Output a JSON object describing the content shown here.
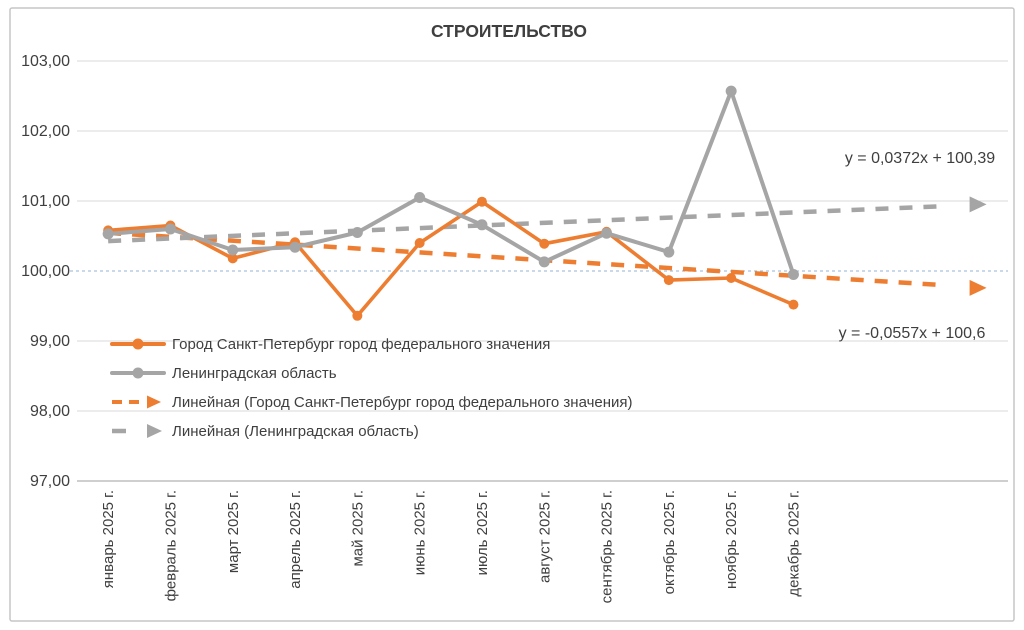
{
  "title": "СТРОИТЕЛЬСТВО",
  "chart_data": {
    "type": "line",
    "title": "СТРОИТЕЛЬСТВО",
    "categories": [
      "январь 2025 г.",
      "февраль 2025 г.",
      "март 2025 г.",
      "апрель 2025 г.",
      "май 2025 г.",
      "июнь 2025 г.",
      "июль 2025 г.",
      "август 2025 г.",
      "сентябрь 2025 г.",
      "октябрь 2025 г.",
      "ноябрь 2025 г.",
      "декабрь 2025 г."
    ],
    "series": [
      {
        "name": "Город Санкт-Петербург город федерального значения",
        "color": "#ED7D31",
        "marker": "circle",
        "values": [
          100.58,
          100.65,
          100.18,
          100.41,
          99.36,
          100.4,
          100.99,
          100.39,
          100.56,
          99.87,
          99.9,
          99.52
        ]
      },
      {
        "name": "Ленинградская область",
        "color": "#A5A5A5",
        "marker": "circle",
        "values": [
          100.53,
          100.6,
          100.3,
          100.34,
          100.55,
          101.05,
          100.66,
          100.13,
          100.54,
          100.27,
          102.57,
          99.95
        ]
      }
    ],
    "trendlines": [
      {
        "name": "Линейная (Город Санкт-Петербург город федерального значения)",
        "color": "#ED7D31",
        "slope": -0.0557,
        "intercept": 100.6,
        "equation_label": "y = -0,0557x + 100,6"
      },
      {
        "name": "Линейная (Ленинградская область)",
        "color": "#A5A5A5",
        "slope": 0.0372,
        "intercept": 100.39,
        "equation_label": "y = 0,0372x + 100,39"
      }
    ],
    "y_axis": {
      "min": 97,
      "max": 103,
      "step": 1,
      "tick_labels": [
        "103,00",
        "102,00",
        "101,00",
        "100,00",
        "99,00",
        "98,00",
        "97,00"
      ]
    },
    "reference_line": {
      "value": 100,
      "color": "#A9C2DC",
      "style": "dashed"
    },
    "grid": true,
    "legend_position": "inside-left",
    "colors": {
      "gridline": "#D9D9D9",
      "axis_line": "#BFBFBF",
      "text": "#3F3F3F",
      "frame_border": "#C6C6C6"
    }
  }
}
